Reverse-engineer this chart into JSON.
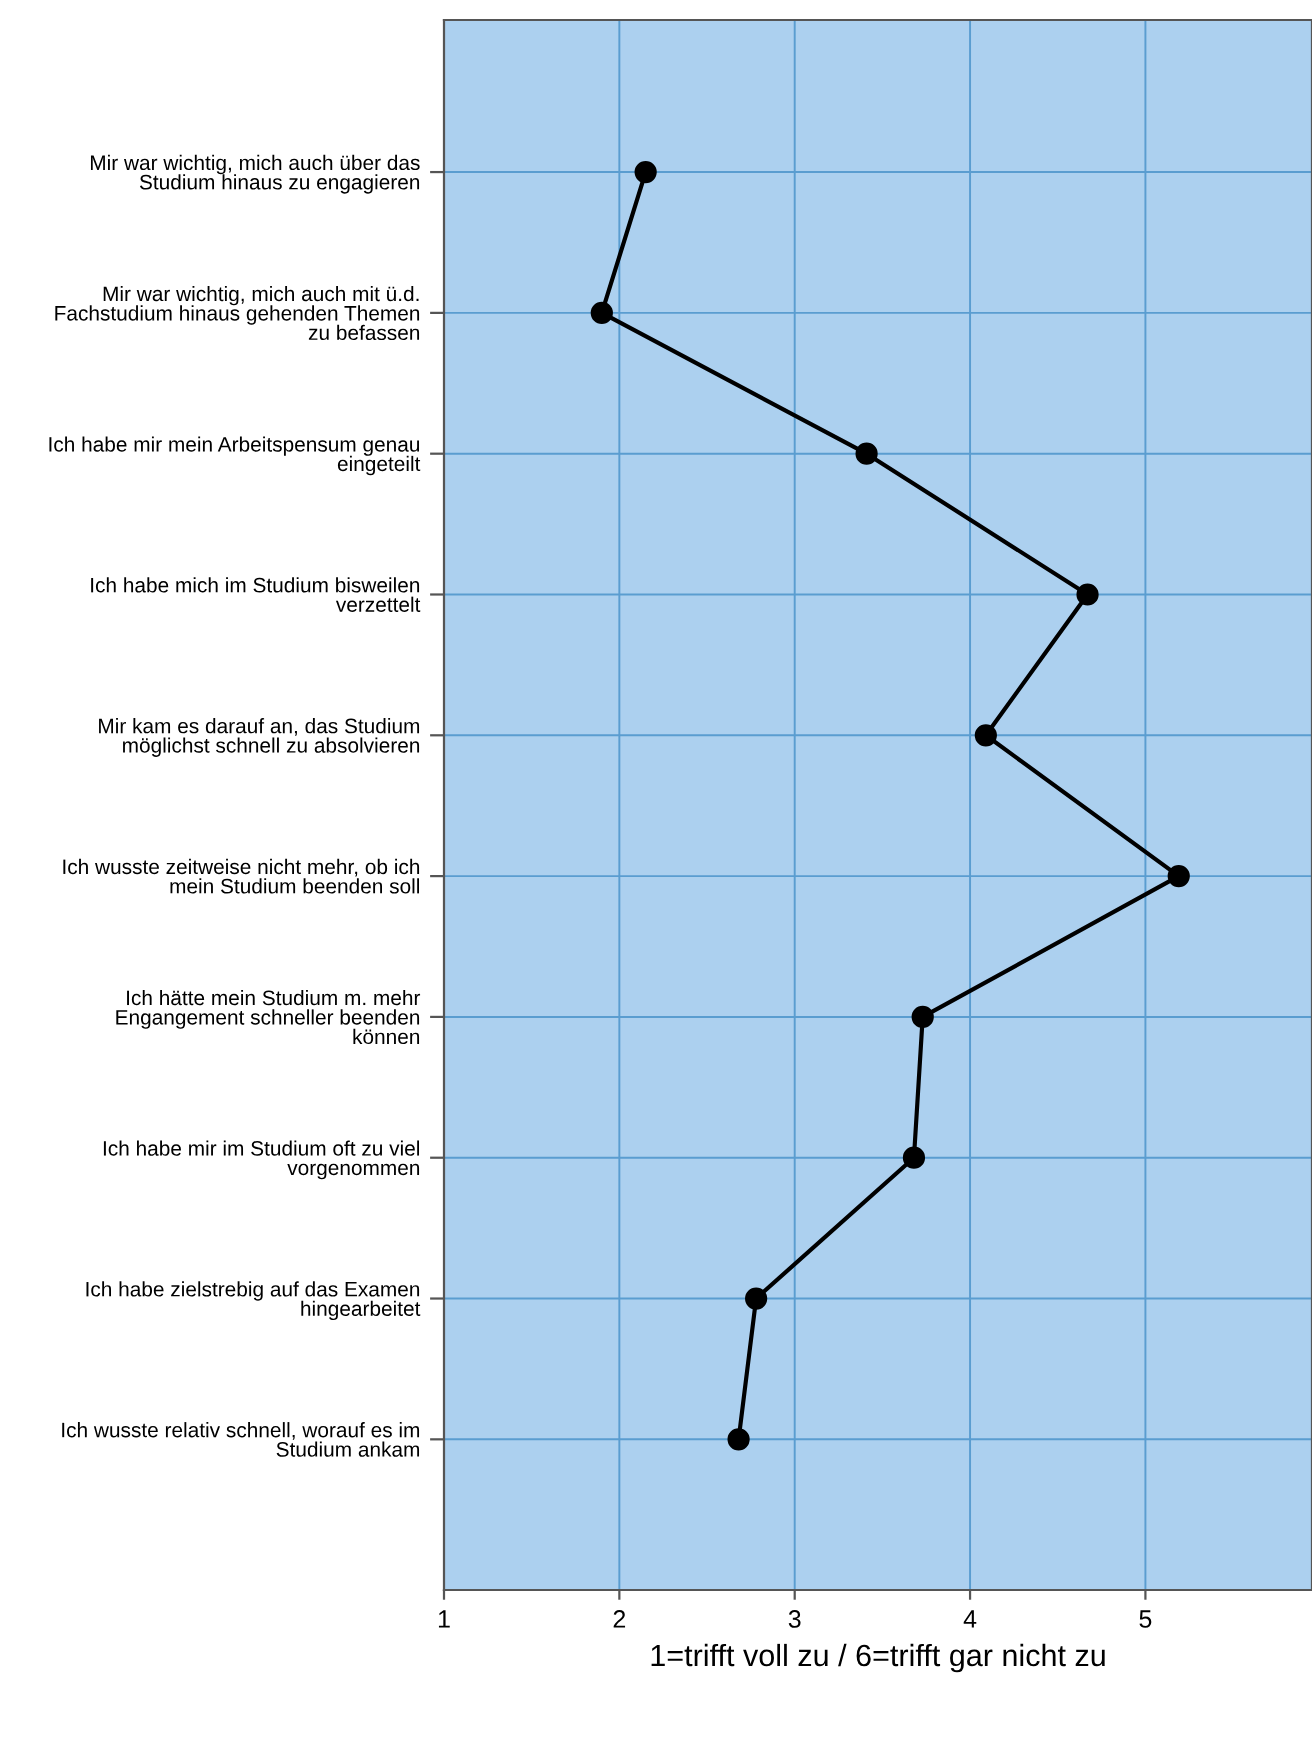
{
  "chart_data": {
    "type": "line",
    "orientation": "horizontal",
    "xlabel": "1=trifft voll zu / 6=trifft gar nicht zu",
    "categories": [
      "Mir war wichtig, mich auch über das\nStudium hinaus zu engagieren",
      "Mir war wichtig, mich auch mit ü.d.\nFachstudium hinaus gehenden Themen\nzu befassen",
      "Ich habe mir mein Arbeitspensum genau\neingeteilt",
      "Ich habe mich im Studium bisweilen\nverzettelt",
      "Mir kam es darauf an, das Studium\nmöglichst schnell zu absolvieren",
      "Ich wusste zeitweise nicht mehr, ob ich\nmein Studium beenden soll",
      "Ich hätte mein Studium m. mehr\nEngangement schneller beenden\nkönnen",
      "Ich habe mir im Studium oft zu viel\nvorgenommen",
      "Ich habe zielstrebig auf das Examen\nhingearbeitet",
      "Ich wusste relativ schnell, worauf es im\nStudium ankam"
    ],
    "series": [
      {
        "color": "#000000",
        "values": [
          2.15,
          1.9,
          3.41,
          4.67,
          4.09,
          5.19,
          3.73,
          3.68,
          2.78,
          2.68
        ]
      }
    ],
    "xlim": [
      1,
      5.95
    ],
    "xticks": [
      1,
      2,
      3,
      4,
      5
    ],
    "grid": true,
    "marker": "circle",
    "line_style": "solid"
  }
}
